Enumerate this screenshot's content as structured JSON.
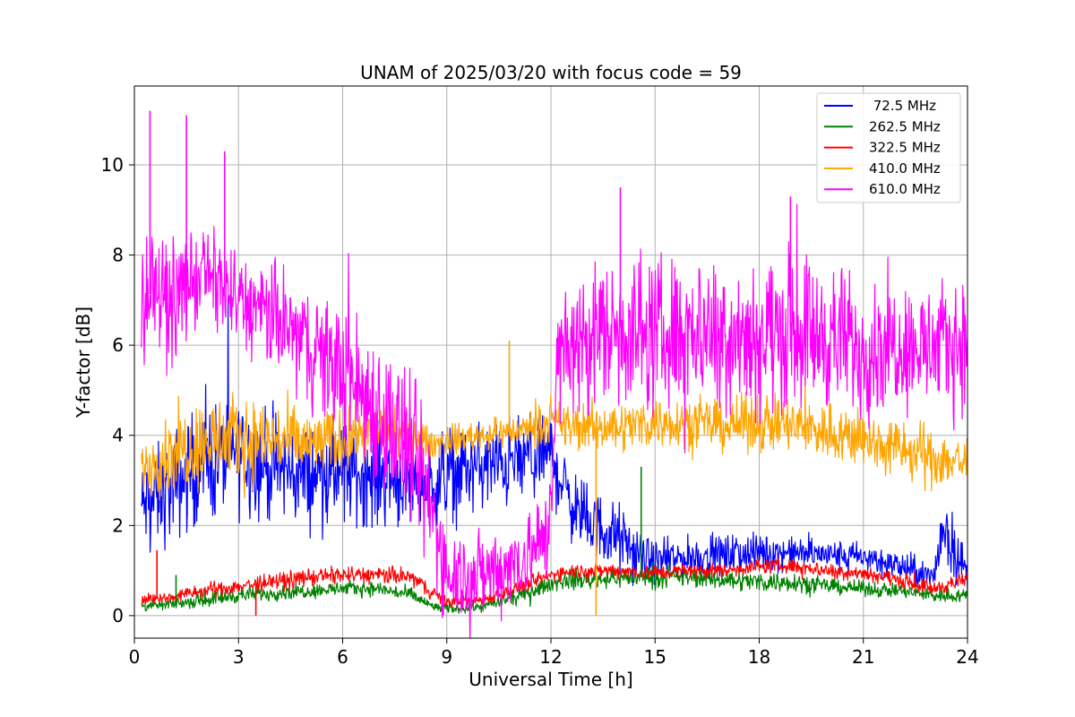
{
  "chart_data": {
    "type": "line",
    "title": "UNAM of 2025/03/20 with focus code = 59",
    "xlabel": "Universal Time [h]",
    "ylabel": "Y-factor [dB]",
    "xlim": [
      0,
      24
    ],
    "ylim": [
      -0.5,
      11.75
    ],
    "xticks": [
      0,
      3,
      6,
      9,
      12,
      15,
      18,
      21,
      24
    ],
    "xtick_labels": [
      "0",
      "3",
      "6",
      "9",
      "12",
      "15",
      "18",
      "21",
      "24"
    ],
    "yticks": [
      0,
      2,
      4,
      6,
      8,
      10
    ],
    "ytick_labels": [
      "0",
      "2",
      "4",
      "6",
      "8",
      "10"
    ],
    "grid": true,
    "legend_position": "top-right",
    "series": [
      {
        "name": " 72.5 MHz",
        "color": "#0000ff",
        "x": [
          0.2,
          1,
          2,
          3,
          4,
          5,
          6,
          7,
          8,
          8.6,
          9,
          10,
          11,
          12,
          12.5,
          13,
          13.5,
          14,
          14.5,
          15,
          16,
          17,
          18,
          19,
          20,
          21,
          22,
          22.5,
          23,
          23.3,
          24
        ],
        "center": [
          2.4,
          2.8,
          3.4,
          3.6,
          3.3,
          3.1,
          3.2,
          3.1,
          3.0,
          2.9,
          3.2,
          3.3,
          3.4,
          3.6,
          2.6,
          2.1,
          1.9,
          1.7,
          1.3,
          1.2,
          1.3,
          1.35,
          1.4,
          1.4,
          1.35,
          1.3,
          1.1,
          1.0,
          0.8,
          2.0,
          0.9
        ],
        "spread": [
          0.9,
          1.1,
          1.2,
          1.2,
          1.1,
          1.0,
          1.0,
          1.0,
          0.9,
          0.9,
          0.9,
          0.9,
          0.9,
          0.9,
          0.8,
          0.7,
          0.7,
          0.7,
          0.5,
          0.4,
          0.4,
          0.4,
          0.4,
          0.3,
          0.3,
          0.3,
          0.3,
          0.3,
          0.3,
          0.8,
          0.4
        ]
      },
      {
        "name": "262.5 MHz",
        "color": "#008000",
        "x": [
          0.2,
          1,
          2,
          3,
          4,
          5,
          6,
          7,
          8,
          8.6,
          9,
          10,
          11,
          12,
          12.5,
          13,
          14,
          15,
          16,
          17,
          18,
          19,
          20,
          21,
          22,
          23,
          24
        ],
        "center": [
          0.2,
          0.25,
          0.35,
          0.45,
          0.5,
          0.55,
          0.6,
          0.6,
          0.45,
          0.2,
          0.15,
          0.2,
          0.4,
          0.7,
          0.8,
          0.8,
          0.85,
          0.85,
          0.85,
          0.8,
          0.75,
          0.75,
          0.65,
          0.6,
          0.55,
          0.45,
          0.45
        ],
        "spread": [
          0.1,
          0.1,
          0.15,
          0.15,
          0.15,
          0.15,
          0.15,
          0.15,
          0.15,
          0.1,
          0.1,
          0.1,
          0.15,
          0.15,
          0.2,
          0.2,
          0.2,
          0.2,
          0.2,
          0.2,
          0.2,
          0.2,
          0.15,
          0.15,
          0.15,
          0.15,
          0.15
        ]
      },
      {
        "name": "322.5 MHz",
        "color": "#ff0000",
        "x": [
          0.2,
          1,
          2,
          3,
          4,
          5,
          6,
          7,
          8,
          8.6,
          9,
          10,
          11,
          12,
          12.5,
          13,
          14,
          15,
          16,
          17,
          18,
          19,
          20,
          21,
          22,
          23,
          24
        ],
        "center": [
          0.35,
          0.4,
          0.55,
          0.65,
          0.75,
          0.85,
          0.9,
          0.9,
          0.85,
          0.5,
          0.3,
          0.35,
          0.6,
          0.9,
          1.0,
          1.0,
          1.0,
          0.95,
          1.0,
          1.0,
          1.1,
          1.1,
          1.0,
          0.95,
          0.8,
          0.6,
          0.8
        ],
        "spread": [
          0.12,
          0.12,
          0.15,
          0.15,
          0.18,
          0.18,
          0.18,
          0.18,
          0.18,
          0.15,
          0.12,
          0.12,
          0.15,
          0.15,
          0.15,
          0.15,
          0.15,
          0.15,
          0.15,
          0.15,
          0.15,
          0.15,
          0.15,
          0.15,
          0.15,
          0.15,
          0.15
        ]
      },
      {
        "name": "410.0 MHz",
        "color": "#ffa500",
        "x": [
          0.2,
          1,
          2,
          3,
          4,
          5,
          6,
          7,
          8,
          8.6,
          9,
          10,
          11,
          12,
          12.5,
          13,
          14,
          15,
          16,
          17,
          18,
          19,
          20,
          21,
          22,
          23,
          24
        ],
        "center": [
          3.3,
          3.6,
          3.9,
          3.9,
          3.9,
          3.8,
          3.9,
          4.2,
          4.0,
          3.8,
          3.9,
          4.0,
          4.1,
          4.3,
          4.2,
          4.2,
          4.2,
          4.3,
          4.3,
          4.2,
          4.3,
          4.2,
          4.1,
          3.9,
          3.7,
          3.5,
          3.4
        ],
        "spread": [
          0.6,
          0.8,
          0.9,
          0.9,
          0.8,
          0.7,
          0.6,
          0.5,
          0.4,
          0.3,
          0.3,
          0.3,
          0.3,
          0.4,
          0.5,
          0.5,
          0.5,
          0.5,
          0.5,
          0.5,
          0.6,
          0.6,
          0.6,
          0.6,
          0.6,
          0.6,
          0.6
        ]
      },
      {
        "name": "610.0 MHz",
        "color": "#ff00ff",
        "x": [
          0.2,
          0.5,
          1,
          2,
          3,
          4,
          5,
          6,
          7,
          8,
          8.6,
          9,
          10,
          11,
          11.9,
          12.2,
          13,
          14,
          15,
          16,
          17,
          18,
          19,
          20,
          21,
          22,
          23,
          24
        ],
        "center": [
          6.8,
          7.2,
          7.0,
          7.6,
          7.0,
          6.6,
          6.0,
          5.4,
          4.6,
          3.6,
          2.2,
          1.0,
          0.9,
          1.2,
          1.7,
          5.6,
          6.2,
          6.4,
          6.2,
          6.4,
          6.4,
          6.2,
          6.4,
          6.2,
          5.9,
          6.1,
          5.9,
          6.1
        ],
        "spread": [
          1.1,
          1.3,
          1.2,
          1.0,
          1.0,
          1.1,
          1.2,
          1.4,
          1.6,
          1.6,
          1.4,
          0.9,
          0.9,
          0.9,
          1.0,
          1.3,
          1.5,
          1.6,
          1.6,
          1.5,
          1.5,
          1.6,
          1.6,
          1.5,
          1.4,
          1.3,
          1.3,
          1.3
        ]
      }
    ],
    "spikes": [
      {
        "series": "610.0 MHz",
        "x": 0.45,
        "y": 11.2
      },
      {
        "series": "610.0 MHz",
        "x": 1.5,
        "y": 11.1
      },
      {
        "series": "610.0 MHz",
        "x": 2.6,
        "y": 10.3
      },
      {
        "series": "610.0 MHz",
        "x": 14.0,
        "y": 9.5
      },
      {
        "series": "610.0 MHz",
        "x": 18.9,
        "y": 9.3
      },
      {
        "series": "410.0 MHz",
        "x": 10.8,
        "y": 6.1
      },
      {
        "series": "410.0 MHz",
        "x": 13.3,
        "y": 0.0
      },
      {
        "series": "322.5 MHz",
        "x": 0.65,
        "y": 1.45
      },
      {
        "series": "322.5 MHz",
        "x": 3.5,
        "y": 0.0
      },
      {
        "series": "262.5 MHz",
        "x": 14.6,
        "y": 3.3
      },
      {
        "series": "262.5 MHz",
        "x": 1.2,
        "y": 0.9
      }
    ]
  }
}
